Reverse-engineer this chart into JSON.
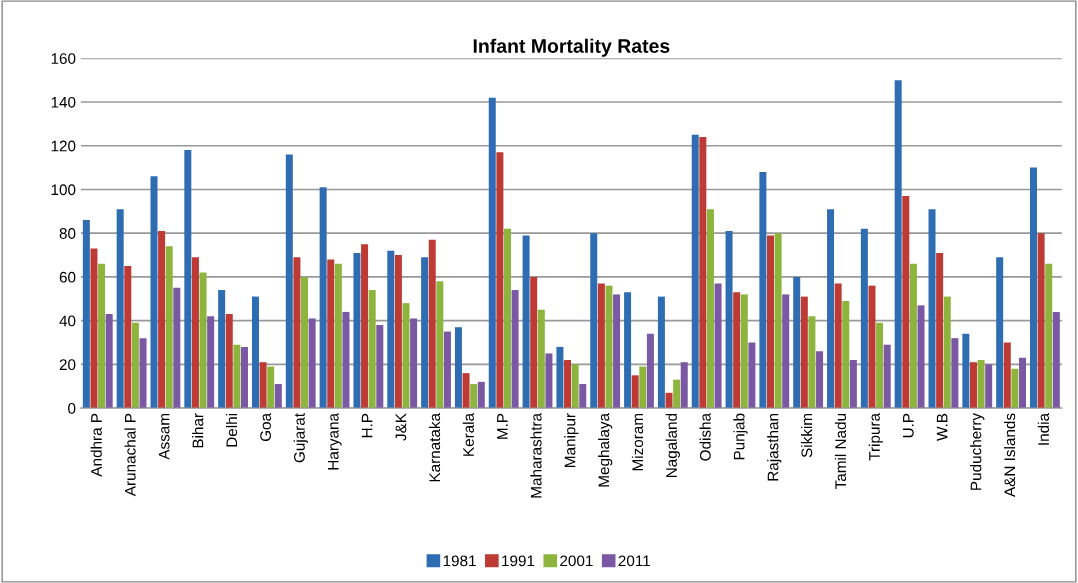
{
  "chart_data": {
    "type": "bar",
    "title": "Infant Mortality Rates",
    "categories": [
      "Andhra P",
      "Arunachal P",
      "Assam",
      "Bihar",
      "Delhi",
      "Goa",
      "Gujarat",
      "Haryana",
      "H.P",
      "J&K",
      "Karnataka",
      "Kerala",
      "M.P",
      "Maharashtra",
      "Manipur",
      "Meghalaya",
      "Mizoram",
      "Nagaland",
      "Odisha",
      "Punjab",
      "Rajasthan",
      "Sikkim",
      "Tamil Nadu",
      "Tripura",
      "U.P",
      "W.B",
      "Puducherry",
      "A&N Islands",
      "India"
    ],
    "series": [
      {
        "name": "1981",
        "color": "#2f6db3",
        "values": [
          86,
          91,
          106,
          118,
          54,
          51,
          116,
          101,
          71,
          72,
          69,
          37,
          142,
          79,
          28,
          80,
          53,
          51,
          125,
          81,
          108,
          60,
          91,
          82,
          150,
          91,
          34,
          69,
          110
        ]
      },
      {
        "name": "1991",
        "color": "#be3a35",
        "values": [
          73,
          65,
          81,
          69,
          43,
          21,
          69,
          68,
          75,
          70,
          77,
          16,
          117,
          60,
          22,
          57,
          15,
          7,
          124,
          53,
          79,
          51,
          57,
          56,
          97,
          71,
          21,
          30,
          80
        ]
      },
      {
        "name": "2001",
        "color": "#8db53e",
        "values": [
          66,
          39,
          74,
          62,
          29,
          19,
          60,
          66,
          54,
          48,
          58,
          11,
          82,
          45,
          20,
          56,
          19,
          13,
          91,
          52,
          80,
          42,
          49,
          39,
          66,
          51,
          22,
          18,
          66
        ]
      },
      {
        "name": "2011",
        "color": "#7a58a3",
        "values": [
          43,
          32,
          55,
          42,
          28,
          11,
          41,
          44,
          38,
          41,
          35,
          12,
          54,
          25,
          11,
          52,
          34,
          21,
          57,
          30,
          52,
          26,
          22,
          29,
          47,
          32,
          20,
          23,
          44
        ]
      }
    ],
    "ylim": [
      0,
      160
    ],
    "yticks": [
      0,
      20,
      40,
      60,
      80,
      100,
      120,
      140,
      160
    ],
    "grid": "y",
    "legend": "bottom"
  }
}
